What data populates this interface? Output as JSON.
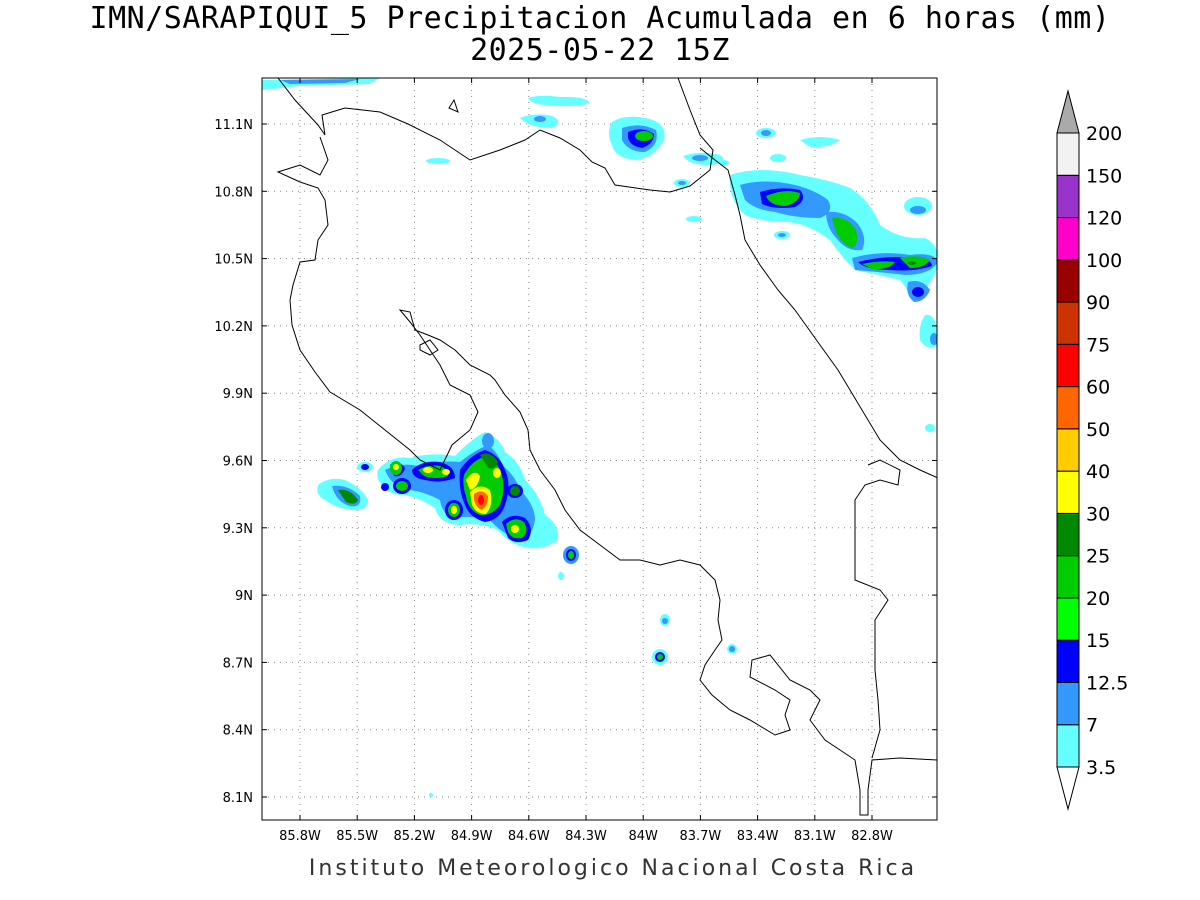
{
  "title": "IMN/SARAPIQUI_5 Precipitacion Acumulada en 6 horas (mm)",
  "subtitle": "2025-05-22 15Z",
  "footer": "Instituto Meteorologico Nacional Costa Rica",
  "map": {
    "lon_range": [
      -86.1,
      -82.3
    ],
    "lat_range": [
      8.0,
      11.3
    ],
    "lon_ticks": [
      "85.8W",
      "85.5W",
      "85.2W",
      "84.9W",
      "84.6W",
      "84.3W",
      "84W",
      "83.7W",
      "83.4W",
      "83.1W",
      "82.8W"
    ],
    "lat_ticks": [
      "11.1N",
      "10.8N",
      "10.5N",
      "10.2N",
      "9.9N",
      "9.6N",
      "9.3N",
      "9N",
      "8.7N",
      "8.4N",
      "8.1N"
    ],
    "grid": "dotted"
  },
  "legend": {
    "levels": [
      "3.5",
      "7",
      "12.5",
      "15",
      "20",
      "25",
      "30",
      "40",
      "50",
      "60",
      "75",
      "90",
      "100",
      "120",
      "150",
      "200"
    ],
    "colors": [
      "#ffffff",
      "#66ffff",
      "#3399ff",
      "#0000ff",
      "#00ff00",
      "#00cc00",
      "#008800",
      "#ffff00",
      "#ffcc00",
      "#ff6600",
      "#ff0000",
      "#cc3300",
      "#990000",
      "#ff00cc",
      "#9933cc",
      "#f2f2f2",
      "#aaaaaa"
    ]
  }
}
